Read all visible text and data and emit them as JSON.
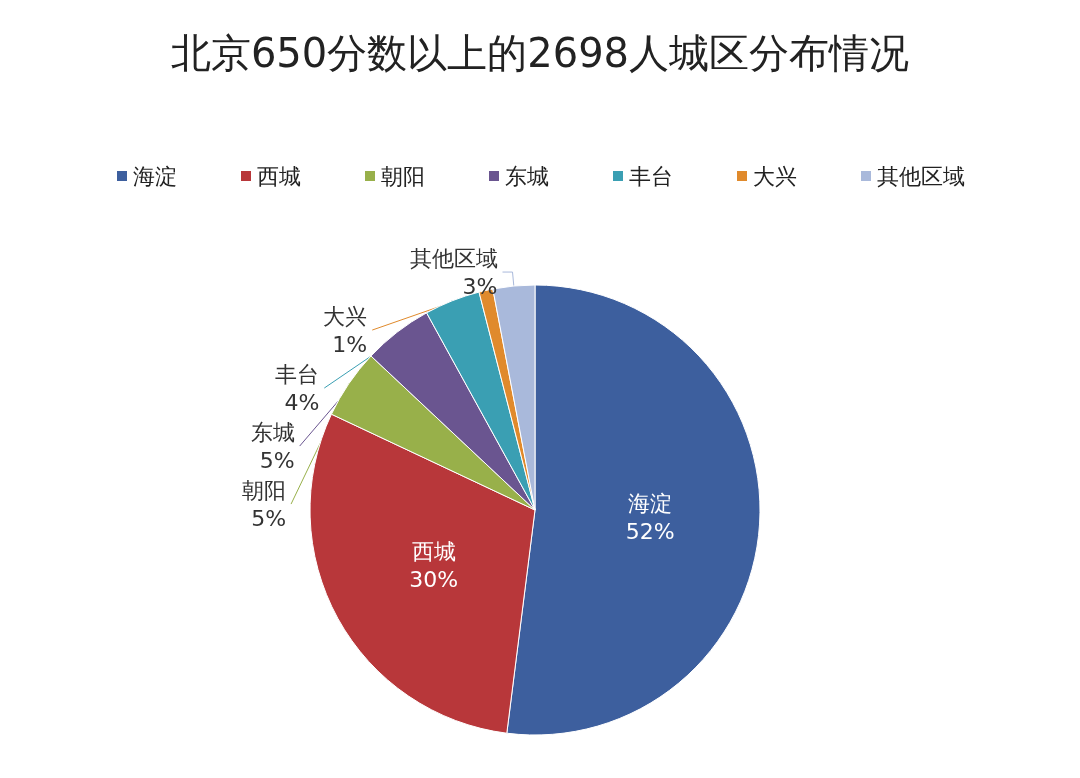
{
  "chart_data": {
    "type": "pie",
    "title": "北京650分数以上的2698人城区分布情况",
    "categories": [
      "海淀",
      "西城",
      "朝阳",
      "东城",
      "丰台",
      "大兴",
      "其他区域"
    ],
    "values": [
      52,
      30,
      5,
      5,
      4,
      1,
      3
    ],
    "colors": [
      "#3d5f9e",
      "#b8373a",
      "#98b04a",
      "#6a5590",
      "#3a9fb3",
      "#e08a2c",
      "#a9b9db"
    ],
    "value_labels": [
      "52%",
      "30%",
      "5%",
      "5%",
      "4%",
      "1%",
      "3%"
    ],
    "legend": "top"
  }
}
